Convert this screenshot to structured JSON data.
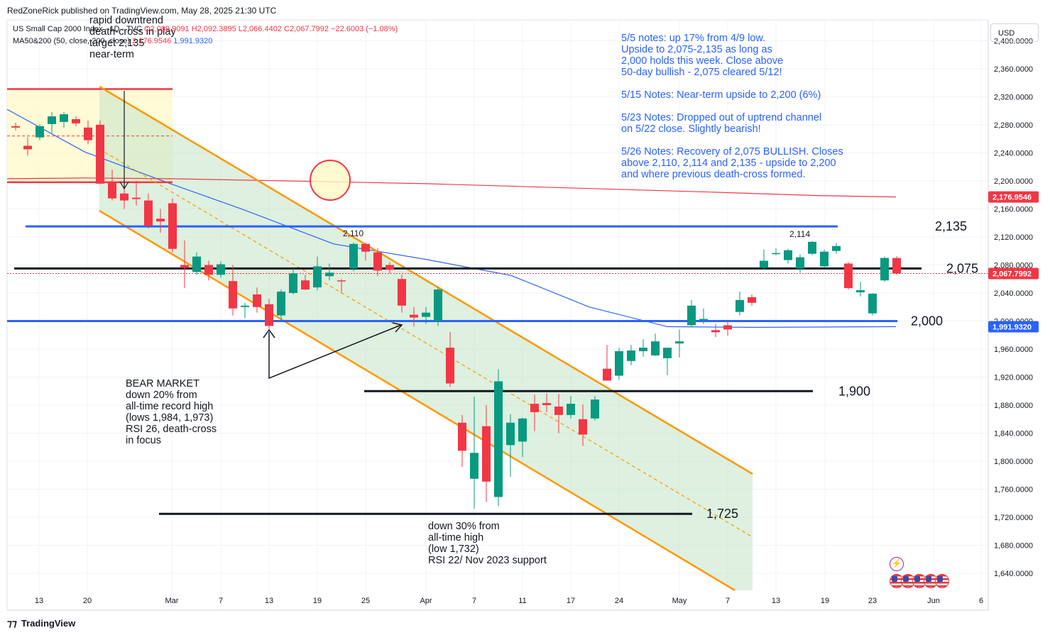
{
  "header": {
    "published": "RedZoneRick published on TradingView.com, May 28, 2025 21:30 UTC"
  },
  "legend": {
    "symbol": "US Small Cap 2000 Index · 1D · TVC",
    "ohlc": "O2,089.9091 H2,092.3895 L2,066.4402 C2,067.7992 −22.6003 (−1.08%)",
    "ma_label": "MA50&200 (50, close, 200, close)",
    "ma200_value": "2,176.9546",
    "ma50_value": "1,991.9320"
  },
  "currency": "USD",
  "footer": {
    "brand": "TradingView"
  },
  "notes": [
    "5/5 notes: up 17% from 4/9 low.",
    "Upside to 2,075-2,135 as long as",
    "2,000 holds this week. Close above",
    "50-day bullish - 2,075 cleared 5/12!",
    "",
    "5/15 Notes: Near-term upside to 2,200 (6%)",
    "",
    "5/23 Notes: Dropped out of uptrend channel",
    "on 5/22 close. Slightly bearish!",
    "",
    "5/26 Notes: Recovery of 2,075 BULLISH. Closes",
    "above 2,110, 2,114 and 2,135 - upside to 2,200",
    "and where previous death-cross formed."
  ],
  "chart_data": {
    "type": "candlestick",
    "title": "US Small Cap 2000 Index · 1D · TVC",
    "ylim": [
      1610,
      2415
    ],
    "y_ticks": [
      "2,400.0000",
      "2,360.0000",
      "2,320.0000",
      "2,280.0000",
      "2,240.0000",
      "2,200.0000",
      "2,160.0000",
      "2,120.0000",
      "2,080.0000",
      "2,040.0000",
      "2,000.0000",
      "1,960.0000",
      "1,920.0000",
      "1,880.0000",
      "1,840.0000",
      "1,800.0000",
      "1,760.0000",
      "1,720.0000",
      "1,680.0000",
      "1,640.0000"
    ],
    "x_ticks": [
      "13",
      "20",
      "Mar",
      "7",
      "13",
      "19",
      "25",
      "Apr",
      "7",
      "11",
      "17",
      "24",
      "May",
      "7",
      "13",
      "19",
      "23",
      "Jun",
      "6"
    ],
    "price_labels": {
      "ma200": "2,176.9546",
      "last": "2,067.7992",
      "ma50": "1,991.9320"
    },
    "candles": [
      {
        "o": 2278,
        "h": 2283,
        "l": 2272,
        "c": 2276
      },
      {
        "o": 2250,
        "h": 2262,
        "l": 2236,
        "c": 2245
      },
      {
        "o": 2262,
        "h": 2281,
        "l": 2258,
        "c": 2278
      },
      {
        "o": 2281,
        "h": 2298,
        "l": 2268,
        "c": 2292
      },
      {
        "o": 2284,
        "h": 2298,
        "l": 2276,
        "c": 2295
      },
      {
        "o": 2288,
        "h": 2292,
        "l": 2278,
        "c": 2282
      },
      {
        "o": 2276,
        "h": 2286,
        "l": 2252,
        "c": 2258
      },
      {
        "o": 2280,
        "h": 2286,
        "l": 2195,
        "c": 2196
      },
      {
        "o": 2198,
        "h": 2216,
        "l": 2172,
        "c": 2175
      },
      {
        "o": 2182,
        "h": 2198,
        "l": 2160,
        "c": 2172
      },
      {
        "o": 2176,
        "h": 2200,
        "l": 2165,
        "c": 2174
      },
      {
        "o": 2172,
        "h": 2182,
        "l": 2132,
        "c": 2136
      },
      {
        "o": 2146,
        "h": 2160,
        "l": 2126,
        "c": 2142
      },
      {
        "o": 2168,
        "h": 2175,
        "l": 2098,
        "c": 2103
      },
      {
        "o": 2080,
        "h": 2115,
        "l": 2047,
        "c": 2076
      },
      {
        "o": 2070,
        "h": 2098,
        "l": 2066,
        "c": 2092
      },
      {
        "o": 2080,
        "h": 2086,
        "l": 2058,
        "c": 2066
      },
      {
        "o": 2066,
        "h": 2085,
        "l": 2062,
        "c": 2081
      },
      {
        "o": 2057,
        "h": 2080,
        "l": 2008,
        "c": 2018
      },
      {
        "o": 2020,
        "h": 2026,
        "l": 2004,
        "c": 2022
      },
      {
        "o": 2038,
        "h": 2048,
        "l": 2012,
        "c": 2020
      },
      {
        "o": 2024,
        "h": 2032,
        "l": 1988,
        "c": 1993
      },
      {
        "o": 2008,
        "h": 2045,
        "l": 2002,
        "c": 2042
      },
      {
        "o": 2040,
        "h": 2075,
        "l": 2038,
        "c": 2068
      },
      {
        "o": 2058,
        "h": 2066,
        "l": 2044,
        "c": 2045
      },
      {
        "o": 2048,
        "h": 2092,
        "l": 2044,
        "c": 2078
      },
      {
        "o": 2064,
        "h": 2082,
        "l": 2058,
        "c": 2069
      },
      {
        "o": 2058,
        "h": 2060,
        "l": 2040,
        "c": 2057
      },
      {
        "o": 2075,
        "h": 2112,
        "l": 2071,
        "c": 2110
      },
      {
        "o": 2110,
        "h": 2112,
        "l": 2086,
        "c": 2099
      },
      {
        "o": 2098,
        "h": 2104,
        "l": 2064,
        "c": 2072
      },
      {
        "o": 2080,
        "h": 2084,
        "l": 2068,
        "c": 2073
      },
      {
        "o": 2060,
        "h": 2066,
        "l": 2012,
        "c": 2022
      },
      {
        "o": 2009,
        "h": 2020,
        "l": 1992,
        "c": 2005
      },
      {
        "o": 2006,
        "h": 2020,
        "l": 1996,
        "c": 2012
      },
      {
        "o": 2000,
        "h": 2048,
        "l": 1993,
        "c": 2045
      },
      {
        "o": 1962,
        "h": 1984,
        "l": 1906,
        "c": 1911
      },
      {
        "o": 1855,
        "h": 1866,
        "l": 1792,
        "c": 1815
      },
      {
        "o": 1775,
        "h": 1892,
        "l": 1732,
        "c": 1812
      },
      {
        "o": 1850,
        "h": 1880,
        "l": 1742,
        "c": 1771
      },
      {
        "o": 1749,
        "h": 1931,
        "l": 1736,
        "c": 1914
      },
      {
        "o": 1823,
        "h": 1867,
        "l": 1778,
        "c": 1855
      },
      {
        "o": 1828,
        "h": 1862,
        "l": 1806,
        "c": 1861
      },
      {
        "o": 1882,
        "h": 1895,
        "l": 1843,
        "c": 1870
      },
      {
        "o": 1883,
        "h": 1897,
        "l": 1870,
        "c": 1880
      },
      {
        "o": 1878,
        "h": 1896,
        "l": 1840,
        "c": 1866
      },
      {
        "o": 1866,
        "h": 1893,
        "l": 1861,
        "c": 1882
      },
      {
        "o": 1860,
        "h": 1881,
        "l": 1822,
        "c": 1838
      },
      {
        "o": 1861,
        "h": 1893,
        "l": 1858,
        "c": 1888
      },
      {
        "o": 1932,
        "h": 1966,
        "l": 1915,
        "c": 1915
      },
      {
        "o": 1922,
        "h": 1962,
        "l": 1916,
        "c": 1957
      },
      {
        "o": 1943,
        "h": 1966,
        "l": 1937,
        "c": 1958
      },
      {
        "o": 1957,
        "h": 1974,
        "l": 1949,
        "c": 1962
      },
      {
        "o": 1951,
        "h": 1982,
        "l": 1950,
        "c": 1971
      },
      {
        "o": 1947,
        "h": 1960,
        "l": 1923,
        "c": 1962
      },
      {
        "o": 1968,
        "h": 1988,
        "l": 1948,
        "c": 1971
      },
      {
        "o": 1994,
        "h": 2030,
        "l": 1991,
        "c": 2022
      },
      {
        "o": 2001,
        "h": 2018,
        "l": 1996,
        "c": 2003
      },
      {
        "o": 1987,
        "h": 1996,
        "l": 1977,
        "c": 1984
      },
      {
        "o": 1994,
        "h": 2000,
        "l": 1979,
        "c": 1988
      },
      {
        "o": 2013,
        "h": 2042,
        "l": 2008,
        "c": 2030
      },
      {
        "o": 2034,
        "h": 2038,
        "l": 2022,
        "c": 2026
      },
      {
        "o": 2076,
        "h": 2102,
        "l": 2074,
        "c": 2086
      },
      {
        "o": 2096,
        "h": 2104,
        "l": 2094,
        "c": 2097
      },
      {
        "o": 2087,
        "h": 2103,
        "l": 2082,
        "c": 2101
      },
      {
        "o": 2075,
        "h": 2095,
        "l": 2069,
        "c": 2091
      },
      {
        "o": 2096,
        "h": 2114,
        "l": 2094,
        "c": 2113
      },
      {
        "o": 2078,
        "h": 2102,
        "l": 2076,
        "c": 2099
      },
      {
        "o": 2100,
        "h": 2111,
        "l": 2096,
        "c": 2107
      },
      {
        "o": 2082,
        "h": 2084,
        "l": 2045,
        "c": 2047
      },
      {
        "o": 2041,
        "h": 2056,
        "l": 2035,
        "c": 2044
      },
      {
        "o": 2011,
        "h": 2040,
        "l": 2008,
        "c": 2039
      },
      {
        "o": 2058,
        "h": 2092,
        "l": 2056,
        "c": 2090
      },
      {
        "o": 2089.9091,
        "h": 2092.3895,
        "l": 2066.4402,
        "c": 2067.7992
      }
    ],
    "ma50": [
      [
        2310,
        2302
      ],
      [
        2240,
        2241
      ],
      [
        2200,
        2196
      ],
      [
        2170,
        2160
      ],
      [
        2130,
        2110
      ],
      [
        2092,
        2088
      ],
      [
        2066,
        2065
      ],
      [
        2044,
        2020
      ],
      [
        2000,
        1992
      ],
      [
        1989,
        1991
      ],
      [
        1991,
        1992
      ]
    ],
    "ma200": [
      [
        2200,
        2203
      ],
      [
        2240,
        2204
      ],
      [
        2300,
        2203
      ],
      [
        2400,
        2200
      ],
      [
        2550,
        2196
      ],
      [
        2700,
        2190
      ],
      [
        3000,
        2184
      ],
      [
        3300,
        2179
      ],
      [
        3480,
        2177
      ]
    ],
    "levels": [
      {
        "label": "2,135",
        "value": 2135
      },
      {
        "label": "2,075",
        "value": 2075
      },
      {
        "label": "2,000",
        "value": 2000
      },
      {
        "label": "1,900",
        "value": 1900
      },
      {
        "label": "1,725",
        "value": 1725
      }
    ],
    "annotations": {
      "t1": "rapid downtrend",
      "t2": "death-cross in play",
      "t3": "target 2,135",
      "t4": "near-term",
      "b1": "BEAR MARKET",
      "b2": "down 20% from",
      "b3": "all-time record high",
      "b4": "(lows 1,984, 1,973)",
      "b5": "RSI 26, death-cross",
      "b6": "in focus",
      "d1": "down 30% from",
      "d2": "all-time high",
      "d3": "(low 1,732)",
      "d4": "RSI 22/ Nov 2023 support",
      "h1": "2,110",
      "h2": "2,114"
    },
    "colors": {
      "up": "#089981",
      "down": "#f23645",
      "ma50": "#2962ff",
      "ma200": "#f23645",
      "channel": "#ff9800"
    }
  }
}
